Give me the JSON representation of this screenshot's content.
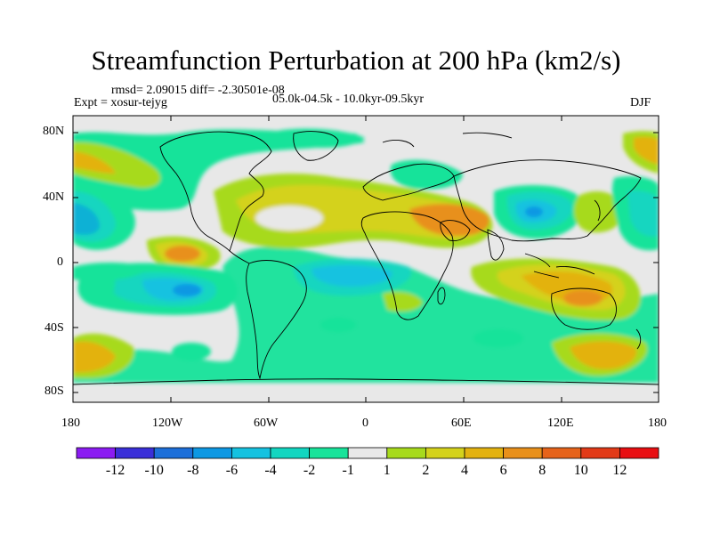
{
  "title": "Streamfunction Perturbation at 200 hPa (km2/s)",
  "stats": "rmsd= 2.09015 diff= -2.30501e-08",
  "experiment": "Expt = xosur-tejyg",
  "period": "05.0k-04.5k - 10.0kyr-09.5kyr",
  "season": "DJF",
  "axes": {
    "lat_labels": [
      "80N",
      "40N",
      "0",
      "40S",
      "80S"
    ],
    "lon_labels": [
      "180",
      "120W",
      "60W",
      "0",
      "60E",
      "120E",
      "180"
    ]
  },
  "colorbar": {
    "colors": [
      "#8b1cf2",
      "#3a2fd8",
      "#1d6fd9",
      "#0d98e3",
      "#15c2e0",
      "#12d6c0",
      "#18e39a",
      "#e8e8e8",
      "#a7da1c",
      "#d4d21b",
      "#e3b20f",
      "#e8901a",
      "#e6631a",
      "#e23a17",
      "#e80e12"
    ],
    "labels": [
      "-12",
      "-10",
      "-8",
      "-6",
      "-4",
      "-2",
      "-1",
      "1",
      "2",
      "4",
      "6",
      "8",
      "10",
      "12"
    ]
  }
}
